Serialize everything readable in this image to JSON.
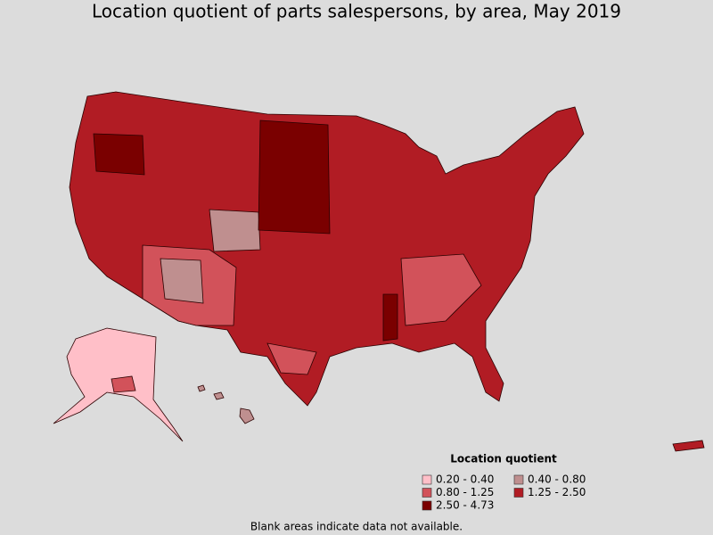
{
  "title": "Location quotient of parts salespersons, by area, May 2019",
  "legend": {
    "title": "Location quotient",
    "items": [
      {
        "label": "0.20 - 0.40",
        "color": "#ffbfc8"
      },
      {
        "label": "0.40 - 0.80",
        "color": "#bf8f8f"
      },
      {
        "label": "0.80 - 1.25",
        "color": "#d2525a"
      },
      {
        "label": "1.25 - 2.50",
        "color": "#b11c24"
      },
      {
        "label": "2.50 - 4.73",
        "color": "#7a0000"
      }
    ]
  },
  "note": "Blank areas indicate data not available."
}
